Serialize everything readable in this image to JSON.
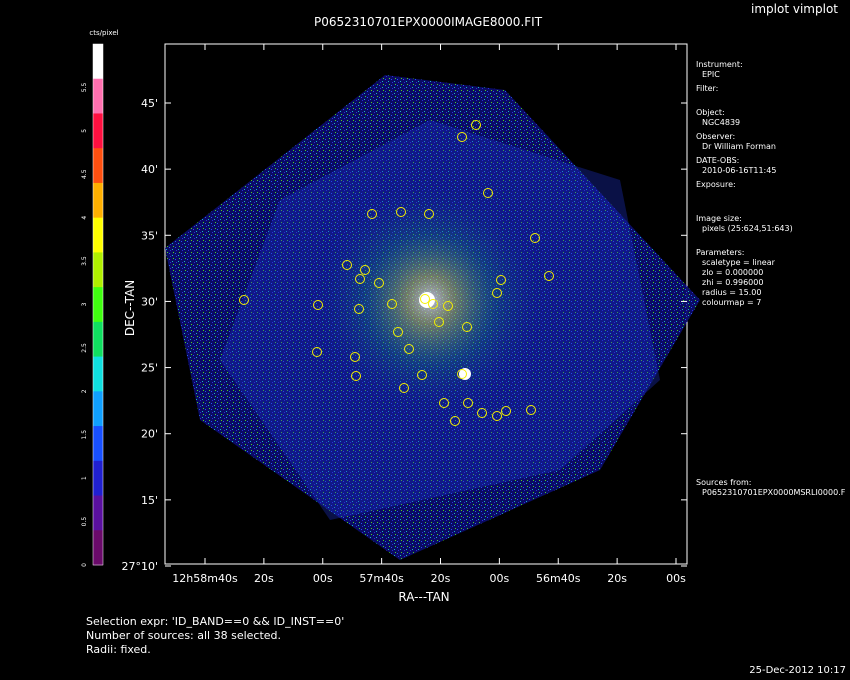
{
  "app": {
    "title": "implot vimplot"
  },
  "colorbar": {
    "label": "cts/pixel",
    "ticks": [
      "0",
      "0.5",
      "1",
      "1.5",
      "2",
      "2.5",
      "3",
      "3.5",
      "4",
      "4.5",
      "5",
      "5.5"
    ],
    "ticks_top": "5.5",
    "colors": [
      "#6a0a6a",
      "#5a10a0",
      "#2020d0",
      "#1850ff",
      "#10a0ff",
      "#10e0e0",
      "#10e060",
      "#40ff10",
      "#b0f000",
      "#ffff00",
      "#ffb000",
      "#ff5010",
      "#ff1040",
      "#ff70b0",
      "#ffffff"
    ]
  },
  "info": {
    "instrument_label": "Instrument:",
    "instrument": "EPIC",
    "filter_label": "Filter:",
    "object_label": "Object:",
    "object": "NGC4839",
    "observer_label": "Observer:",
    "observer": "Dr William Forman",
    "date_label": "DATE-OBS:",
    "date": "2010-06-16T11:45",
    "exposure_label": "Exposure:",
    "imagesize_label": "Image size:",
    "imagesize": "pixels (25:624,51:643)",
    "params_label": "Parameters:",
    "param_scaletype": "scaletype = linear",
    "param_zlo": "zlo = 0.000000",
    "param_zhi": "zhi = 0.996000",
    "param_radius": "radius = 15.00",
    "param_colourmap": "colourmap = 7",
    "sources_label": "Sources from:",
    "sources_file": "P0652310701EPX0000MSRLI0000.F"
  },
  "status": {
    "line1": "Selection expr: 'ID_BAND==0 && ID_INST==0'",
    "line2": "Number of sources: all 38 selected.",
    "line3": "Radii: fixed."
  },
  "timestamp": "25-Dec-2012 10:17",
  "chart_data": {
    "type": "image",
    "title": "P0652310701EPX0000IMAGE8000.FIT",
    "xlabel": "RA---TAN",
    "ylabel": "DEC--TAN",
    "x_ticks": [
      "12h58m40s",
      "20s",
      "00s",
      "57m40s",
      "20s",
      "00s",
      "56m40s",
      "20s",
      "00s"
    ],
    "y_ticks": [
      "27°10'",
      "15'",
      "20'",
      "25'",
      "30'",
      "35'",
      "40'",
      "45'"
    ],
    "y_tick_values_arcmin": [
      10,
      15,
      20,
      25,
      30,
      35,
      40,
      45
    ],
    "source_count": 38,
    "sources_note": "source circles drawn as small yellow markers"
  }
}
